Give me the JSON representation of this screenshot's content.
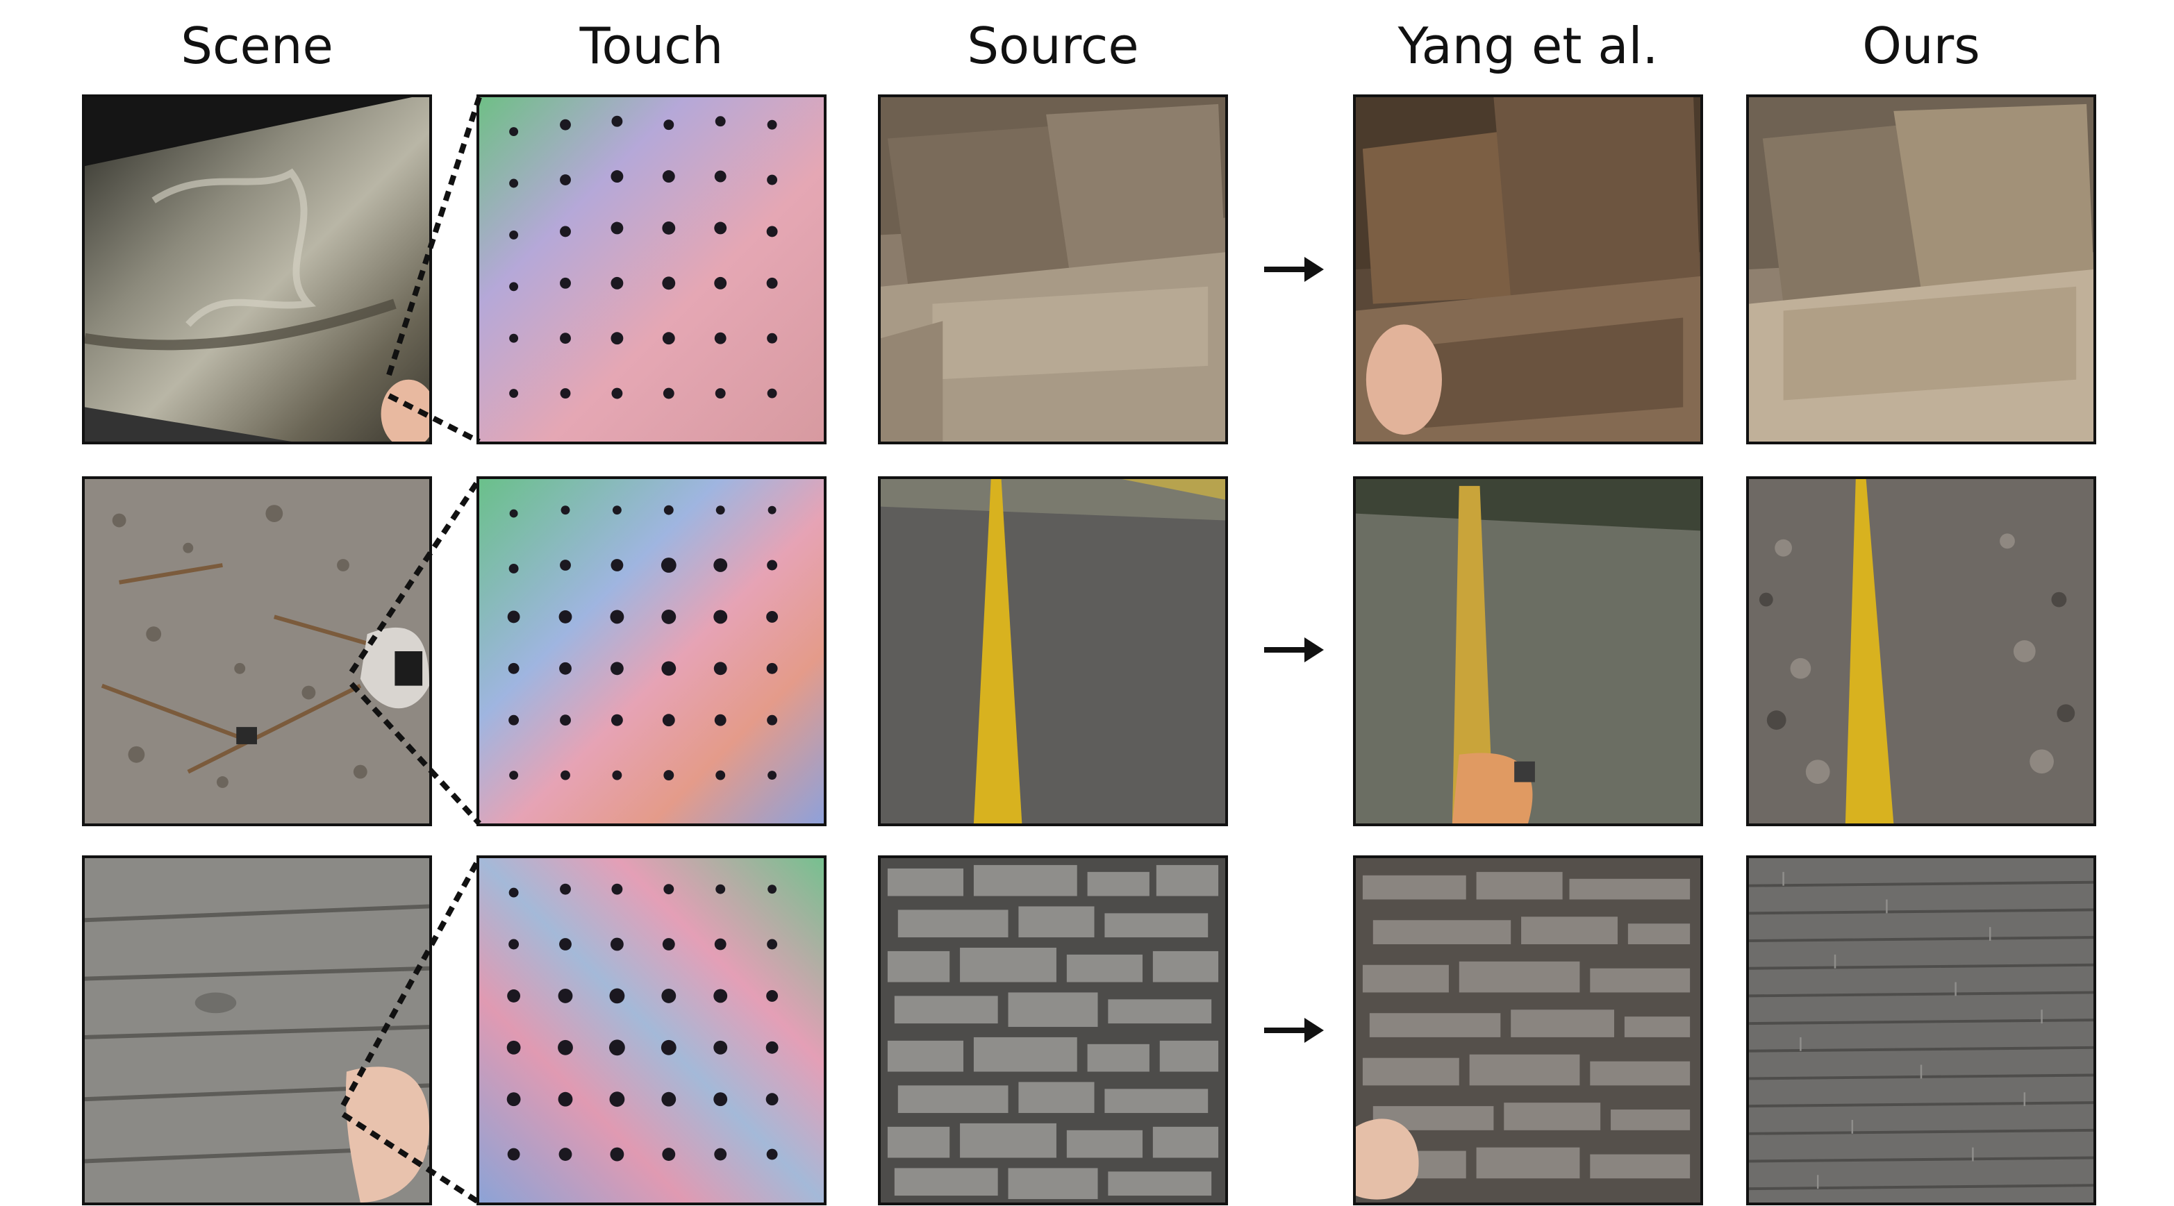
{
  "figure": {
    "column_headers": {
      "scene": "Scene",
      "touch": "Touch",
      "source": "Source",
      "yang": "Yang et al.",
      "ours": "Ours"
    },
    "rows": [
      {
        "name": "row-sofa",
        "scene": "leather-cushion-photo",
        "touch": "tactile-sensor-dot-grid",
        "source": "beige-fabric-sofa-photo",
        "yang": "textured-brown-sofa-with-hand",
        "ours": "beige-sofa-result"
      },
      {
        "name": "row-road",
        "scene": "gravel-ground-photo",
        "touch": "tactile-sensor-dot-grid",
        "source": "asphalt-road-yellow-line",
        "yang": "gravel-road-with-hand",
        "ours": "gravel-road-yellow-line-result"
      },
      {
        "name": "row-stone",
        "scene": "weathered-wood-plank-photo",
        "touch": "tactile-sensor-dot-grid",
        "source": "stacked-stone-wall",
        "yang": "stone-wall-with-hand",
        "ours": "slate-texture-result"
      }
    ],
    "arrow_icon": "right-arrow-icon",
    "colors": {
      "border": "#111111",
      "road_line": "#d8b21f",
      "tactile_dot": "#1b1820"
    }
  }
}
